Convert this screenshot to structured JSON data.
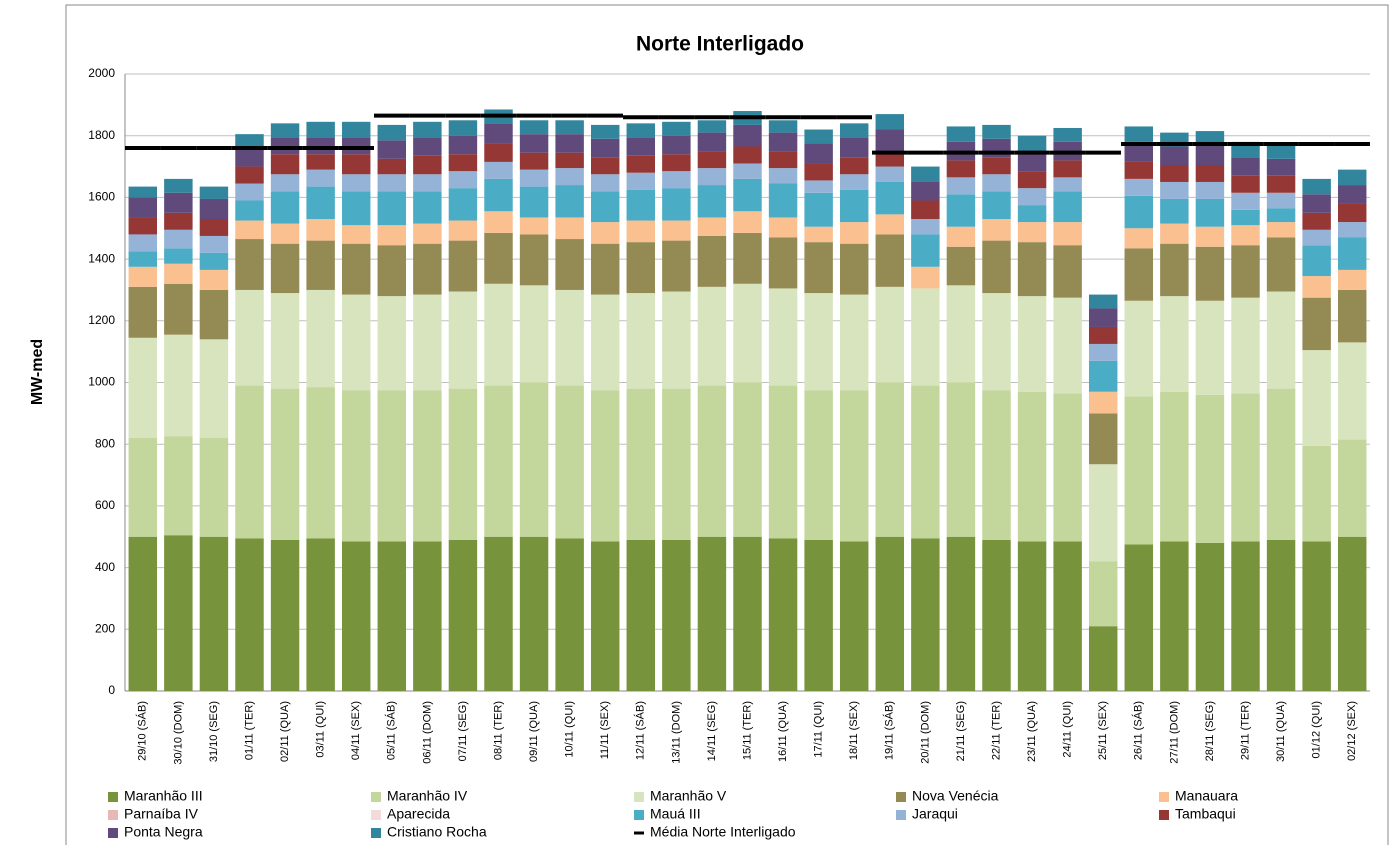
{
  "chart_data": {
    "type": "stacked_bar",
    "title": "Norte Interligado",
    "y_label": "MW-med",
    "categories": [
      "29/10 (SÁB)",
      "30/10 (DOM)",
      "31/10 (SEG)",
      "01/11 (TER)",
      "02/11 (QUA)",
      "03/11 (QUI)",
      "04/11 (SEX)",
      "05/11 (SÁB)",
      "06/11 (DOM)",
      "07/11 (SEG)",
      "08/11 (TER)",
      "09/11 (QUA)",
      "10/11 (QUI)",
      "11/11 (SEX)",
      "12/11 (SÁB)",
      "13/11 (DOM)",
      "14/11 (SEG)",
      "15/11 (TER)",
      "16/11 (QUA)",
      "17/11 (QUI)",
      "18/11 (SEX)",
      "19/11 (SÁB)",
      "20/11 (DOM)",
      "21/11 (SEG)",
      "22/11 (TER)",
      "23/11 (QUA)",
      "24/11 (QUI)",
      "25/11 (SEX)",
      "26/11 (SÁB)",
      "27/11 (DOM)",
      "28/11 (SEG)",
      "29/11 (TER)",
      "30/11 (QUA)",
      "01/12 (QUI)",
      "02/12 (SEX)"
    ],
    "series": [
      {
        "name": "Maranhão III",
        "color": "#77933c",
        "values": [
          500,
          505,
          500,
          495,
          490,
          495,
          485,
          485,
          485,
          490,
          500,
          500,
          495,
          485,
          490,
          490,
          500,
          500,
          495,
          490,
          485,
          500,
          495,
          500,
          490,
          485,
          485,
          210,
          475,
          485,
          480,
          485,
          490,
          485,
          500
        ]
      },
      {
        "name": "Maranhão IV",
        "color": "#c3d69b",
        "values": [
          320,
          320,
          320,
          495,
          490,
          490,
          490,
          490,
          490,
          490,
          490,
          500,
          495,
          490,
          490,
          490,
          490,
          500,
          495,
          485,
          490,
          500,
          495,
          500,
          485,
          485,
          480,
          210,
          480,
          485,
          480,
          480,
          490,
          310,
          315
        ]
      },
      {
        "name": "Maranhão V",
        "color": "#d7e4bd",
        "values": [
          325,
          330,
          320,
          310,
          310,
          315,
          310,
          305,
          310,
          315,
          330,
          315,
          310,
          310,
          310,
          315,
          320,
          320,
          315,
          315,
          310,
          310,
          315,
          315,
          315,
          310,
          310,
          315,
          310,
          310,
          305,
          310,
          315,
          310,
          315
        ]
      },
      {
        "name": "Nova Venécia",
        "color": "#948a54",
        "values": [
          165,
          165,
          160,
          165,
          160,
          160,
          165,
          165,
          165,
          165,
          165,
          165,
          165,
          165,
          165,
          165,
          165,
          165,
          165,
          165,
          165,
          170,
          0,
          125,
          170,
          175,
          170,
          165,
          170,
          170,
          175,
          170,
          175,
          170,
          170
        ]
      },
      {
        "name": "Manauara",
        "color": "#fac090",
        "values": [
          65,
          65,
          65,
          60,
          65,
          70,
          60,
          65,
          65,
          65,
          70,
          55,
          70,
          70,
          70,
          65,
          60,
          70,
          65,
          50,
          70,
          65,
          70,
          65,
          70,
          65,
          75,
          70,
          65,
          65,
          65,
          65,
          50,
          70,
          65
        ]
      },
      {
        "name": "Parnaíba IV",
        "color": "#e6b9b8",
        "values": [
          0,
          0,
          0,
          0,
          0,
          0,
          0,
          0,
          0,
          0,
          0,
          0,
          0,
          0,
          0,
          0,
          0,
          0,
          0,
          0,
          0,
          0,
          0,
          0,
          0,
          0,
          0,
          0,
          0,
          0,
          0,
          0,
          0,
          0,
          0
        ]
      },
      {
        "name": "Aparecida",
        "color": "#f2dcdb",
        "values": [
          0,
          0,
          0,
          0,
          0,
          0,
          0,
          0,
          0,
          0,
          0,
          0,
          0,
          0,
          0,
          0,
          0,
          0,
          0,
          0,
          0,
          0,
          0,
          0,
          0,
          0,
          0,
          0,
          0,
          0,
          0,
          0,
          0,
          0,
          0
        ]
      },
      {
        "name": "Mauá III",
        "color": "#4bacc6",
        "values": [
          50,
          50,
          55,
          65,
          105,
          105,
          110,
          110,
          105,
          105,
          105,
          100,
          105,
          100,
          100,
          105,
          105,
          105,
          110,
          110,
          105,
          105,
          105,
          105,
          90,
          55,
          100,
          100,
          105,
          80,
          90,
          50,
          45,
          100,
          105
        ]
      },
      {
        "name": "Jaraqui",
        "color": "#95b3d7",
        "values": [
          55,
          60,
          55,
          55,
          55,
          55,
          55,
          55,
          55,
          55,
          55,
          55,
          55,
          55,
          55,
          55,
          55,
          50,
          50,
          40,
          50,
          50,
          50,
          55,
          55,
          55,
          45,
          55,
          55,
          55,
          55,
          55,
          50,
          50,
          50
        ]
      },
      {
        "name": "Tambaqui",
        "color": "#953735",
        "values": [
          55,
          55,
          55,
          55,
          65,
          50,
          65,
          50,
          60,
          55,
          60,
          55,
          50,
          55,
          55,
          55,
          55,
          55,
          55,
          55,
          55,
          50,
          60,
          55,
          55,
          55,
          55,
          55,
          55,
          55,
          55,
          55,
          55,
          55,
          60
        ]
      },
      {
        "name": "Ponta Negra",
        "color": "#604a7b",
        "values": [
          65,
          65,
          65,
          60,
          55,
          55,
          55,
          60,
          60,
          60,
          65,
          60,
          60,
          60,
          60,
          60,
          60,
          70,
          60,
          65,
          65,
          70,
          60,
          60,
          60,
          60,
          60,
          60,
          65,
          60,
          65,
          60,
          55,
          60,
          60
        ]
      },
      {
        "name": "Cristiano Rocha",
        "color": "#31859c",
        "values": [
          35,
          45,
          40,
          45,
          45,
          50,
          50,
          50,
          50,
          50,
          45,
          45,
          45,
          45,
          45,
          45,
          40,
          45,
          40,
          45,
          45,
          50,
          50,
          50,
          45,
          55,
          45,
          45,
          50,
          45,
          45,
          50,
          45,
          50,
          50
        ]
      }
    ],
    "average": {
      "name": "Média Norte Interligado",
      "color": "#000000",
      "values": [
        1760,
        1760,
        1760,
        1760,
        1760,
        1760,
        1760,
        1865,
        1865,
        1865,
        1865,
        1865,
        1865,
        1865,
        1860,
        1860,
        1860,
        1860,
        1860,
        1860,
        1860,
        1745,
        1745,
        1745,
        1745,
        1745,
        1745,
        1745,
        1773,
        1773,
        1773,
        1773,
        1773,
        1773,
        1773
      ]
    },
    "ylim": [
      0,
      2000
    ],
    "yticks": [
      0,
      200,
      400,
      600,
      800,
      1000,
      1200,
      1400,
      1600,
      1800,
      2000
    ],
    "grid": true
  }
}
